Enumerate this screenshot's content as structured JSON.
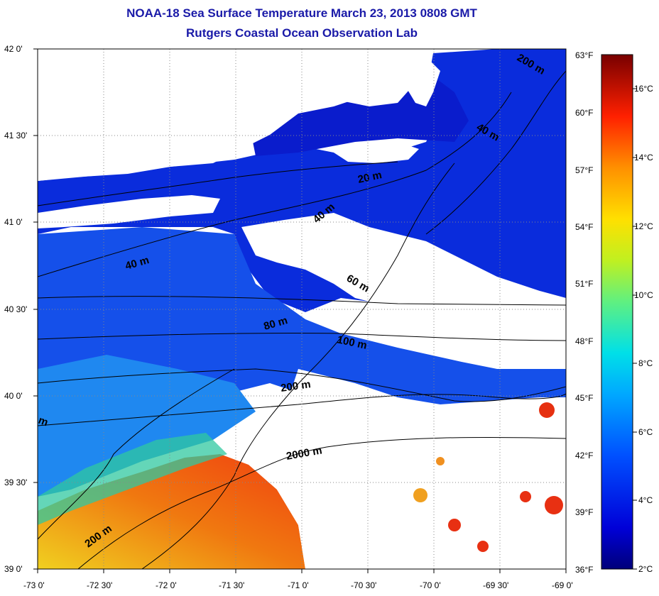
{
  "title": "NOAA-18 Sea Surface Temperature March 23, 2013 0808 GMT",
  "subtitle": "Rutgers Coastal Ocean Observation Lab",
  "latitude_labels": [
    "42 0'",
    "41 30'",
    "41 0'",
    "40 30'",
    "40 0'",
    "39 30'",
    "39 0'"
  ],
  "longitude_labels": [
    "-73 0'",
    "-72 30'",
    "-72 0'",
    "-71 30'",
    "-71 0'",
    "-70 30'",
    "-70 0'",
    "-69 30'",
    "-69 0'"
  ],
  "fahrenheit_labels": [
    "63°F",
    "60°F",
    "57°F",
    "54°F",
    "51°F",
    "48°F",
    "45°F",
    "42°F",
    "39°F",
    "36°F"
  ],
  "celsius_labels": [
    "16°C",
    "14°C",
    "12°C",
    "10°C",
    "8°C",
    "6°C",
    "4°C",
    "2°C"
  ],
  "isobath_labels": [
    "200 m",
    "40 m",
    "20 m",
    "40 m",
    "40 m",
    "60 m",
    "80 m",
    "100 m",
    "200 m",
    "2000 m",
    "m",
    "200 m"
  ],
  "colors": {
    "title": "#1a1aa8",
    "land_and_cloud": "#ffffff",
    "cold_water": "#0a1fd0",
    "warm_water": "#e0300a"
  },
  "map_extent": {
    "lon": [
      -73,
      -69
    ],
    "lat": [
      39,
      42
    ]
  },
  "colorbar_range": {
    "celsius": [
      2,
      17
    ],
    "fahrenheit": [
      36,
      63
    ]
  }
}
